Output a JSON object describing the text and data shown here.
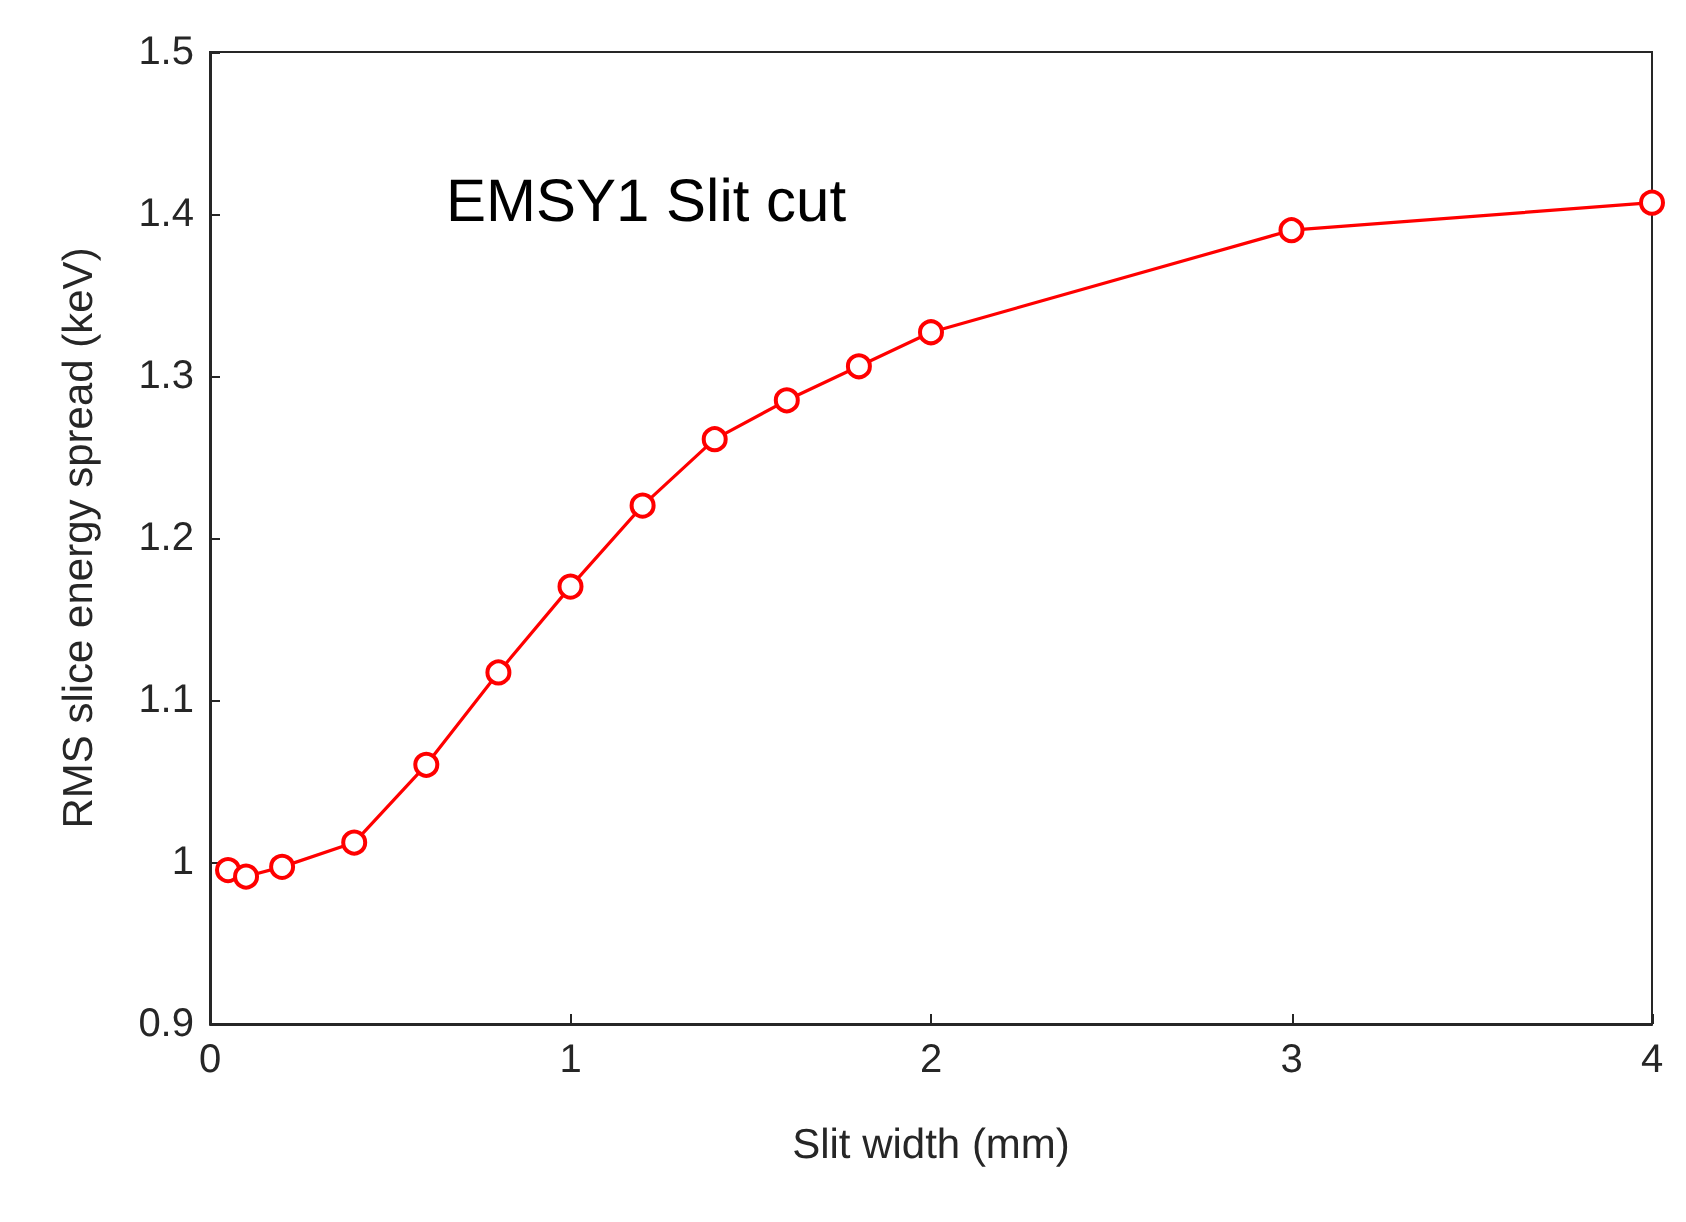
{
  "chart_data": {
    "type": "line",
    "xlabel": "Slit width (mm)",
    "ylabel": "RMS slice energy spread (keV)",
    "annotations": [
      "EMSY1 Slit cut"
    ],
    "x": [
      0.05,
      0.1,
      0.2,
      0.4,
      0.6,
      0.8,
      1.0,
      1.2,
      1.4,
      1.6,
      1.8,
      2.0,
      3.0,
      4.0
    ],
    "series": [
      {
        "color": "#ff0000",
        "values": [
          0.995,
          0.991,
          0.997,
          1.012,
          1.06,
          1.117,
          1.17,
          1.22,
          1.261,
          1.285,
          1.306,
          1.327,
          1.39,
          1.407
        ]
      }
    ],
    "xlim": [
      0,
      4
    ],
    "xticks": [
      0,
      1,
      2,
      3,
      4
    ],
    "ylim": [
      0.9,
      1.5
    ],
    "yticks": [
      0.9,
      1,
      1.1,
      1.2,
      1.3,
      1.4,
      1.5
    ],
    "grid": false,
    "marker": "circle",
    "line_style": "solid"
  }
}
